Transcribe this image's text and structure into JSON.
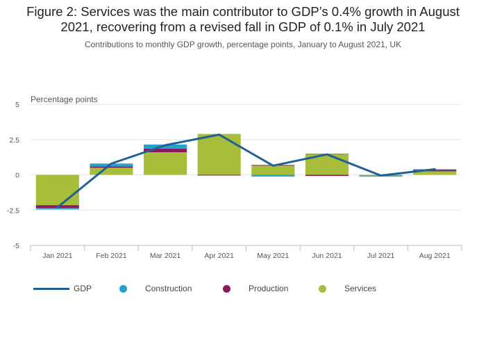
{
  "title_line1": "Figure 2: Services was the main contributor to GDP’s 0.4% growth in August",
  "title_line2": "2021, recovering from a revised fall in GDP of 0.1% in July 2021",
  "subtitle": "Contributions to monthly GDP growth, percentage points, January to August 2021, UK",
  "chart_data": {
    "type": "bar",
    "stacked": true,
    "title": "Figure 2: Services was the main contributor to GDP’s 0.4% growth in August 2021, recovering from a revised fall in GDP of 0.1% in July 2021",
    "subtitle": "Contributions to monthly GDP growth, percentage points, January to August 2021, UK",
    "ylabel": "Percentage points",
    "xlabel": "",
    "ylim": [
      -5,
      5
    ],
    "yticks": [
      5,
      2.5,
      0,
      -2.5,
      -5
    ],
    "ytick_labels": [
      "5",
      "2.5",
      "0",
      "-2.5",
      "-5"
    ],
    "categories": [
      "Jan 2021",
      "Feb 2021",
      "Mar 2021",
      "Apr 2021",
      "May 2021",
      "Jun 2021",
      "Jul 2021",
      "Aug 2021"
    ],
    "series": [
      {
        "name": "Services",
        "type": "bar",
        "color": "#a8bd3a",
        "values": [
          -2.15,
          0.5,
          1.6,
          2.9,
          0.65,
          1.45,
          -0.05,
          0.25
        ]
      },
      {
        "name": "Production",
        "type": "bar",
        "color": "#871a5b",
        "values": [
          -0.2,
          0.1,
          0.25,
          -0.05,
          0.05,
          -0.08,
          0.0,
          0.1
        ]
      },
      {
        "name": "Construction",
        "type": "bar",
        "color": "#27a0cc",
        "values": [
          -0.1,
          0.2,
          0.3,
          0.0,
          -0.12,
          0.05,
          -0.07,
          0.05
        ]
      },
      {
        "name": "GDP",
        "type": "line",
        "color": "#206095",
        "values": [
          -2.3,
          0.8,
          2.1,
          2.85,
          0.65,
          1.45,
          -0.05,
          0.4
        ]
      }
    ],
    "grid": true,
    "legend_position": "bottom"
  },
  "legend": [
    {
      "label": "GDP",
      "color": "#206095",
      "shape": "line"
    },
    {
      "label": "Construction",
      "color": "#27a0cc",
      "shape": "dot"
    },
    {
      "label": "Production",
      "color": "#871a5b",
      "shape": "dot"
    },
    {
      "label": "Services",
      "color": "#a8bd3a",
      "shape": "dot"
    }
  ]
}
